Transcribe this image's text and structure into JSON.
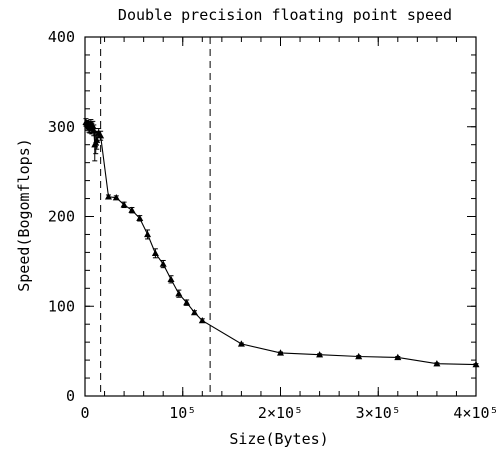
{
  "chart_data": {
    "type": "line",
    "title": "Double precision floating point speed",
    "xlabel": "Size(Bytes)",
    "ylabel": "Speed(Bogomflops)",
    "xlim": [
      0,
      400000
    ],
    "ylim": [
      0,
      400
    ],
    "grid": false,
    "x_ticks": [
      {
        "value": 0,
        "label": "0"
      },
      {
        "value": 100000,
        "label": "10⁵"
      },
      {
        "value": 200000,
        "label": "2×10⁵"
      },
      {
        "value": 300000,
        "label": "3×10⁵"
      },
      {
        "value": 400000,
        "label": "4×10⁵"
      }
    ],
    "y_ticks": [
      {
        "value": 0,
        "label": "0"
      },
      {
        "value": 100,
        "label": "100"
      },
      {
        "value": 200,
        "label": "200"
      },
      {
        "value": 300,
        "label": "300"
      },
      {
        "value": 400,
        "label": "400"
      }
    ],
    "reference_lines_x": [
      16000,
      128000
    ],
    "series": [
      {
        "marker": "triangle",
        "points": [
          {
            "x": 1000,
            "y": 305,
            "err": 4
          },
          {
            "x": 2000,
            "y": 303,
            "err": 4
          },
          {
            "x": 3000,
            "y": 301,
            "err": 5
          },
          {
            "x": 4000,
            "y": 300,
            "err": 6
          },
          {
            "x": 5000,
            "y": 299,
            "err": 6
          },
          {
            "x": 6000,
            "y": 303,
            "err": 5
          },
          {
            "x": 7000,
            "y": 298,
            "err": 6
          },
          {
            "x": 8000,
            "y": 301,
            "err": 5
          },
          {
            "x": 9000,
            "y": 296,
            "err": 6
          },
          {
            "x": 10000,
            "y": 280,
            "err": 18
          },
          {
            "x": 11000,
            "y": 282,
            "err": 12
          },
          {
            "x": 12000,
            "y": 285,
            "err": 10
          },
          {
            "x": 14000,
            "y": 293,
            "err": 5
          },
          {
            "x": 16000,
            "y": 290,
            "err": 5
          },
          {
            "x": 24000,
            "y": 222,
            "err": 2
          },
          {
            "x": 32000,
            "y": 221,
            "err": 2
          },
          {
            "x": 40000,
            "y": 213,
            "err": 3
          },
          {
            "x": 48000,
            "y": 207,
            "err": 3
          },
          {
            "x": 56000,
            "y": 198,
            "err": 3
          },
          {
            "x": 64000,
            "y": 180,
            "err": 5
          },
          {
            "x": 72000,
            "y": 159,
            "err": 5
          },
          {
            "x": 80000,
            "y": 147,
            "err": 4
          },
          {
            "x": 88000,
            "y": 130,
            "err": 4
          },
          {
            "x": 96000,
            "y": 114,
            "err": 4
          },
          {
            "x": 104000,
            "y": 104,
            "err": 3
          },
          {
            "x": 112000,
            "y": 93,
            "err": 2
          },
          {
            "x": 120000,
            "y": 84,
            "err": 2
          },
          {
            "x": 160000,
            "y": 58,
            "err": 1
          },
          {
            "x": 200000,
            "y": 48,
            "err": 1
          },
          {
            "x": 240000,
            "y": 46,
            "err": 1
          },
          {
            "x": 280000,
            "y": 44,
            "err": 1
          },
          {
            "x": 320000,
            "y": 43,
            "err": 1
          },
          {
            "x": 360000,
            "y": 36,
            "err": 1
          },
          {
            "x": 400000,
            "y": 35,
            "err": 1
          }
        ]
      }
    ]
  }
}
